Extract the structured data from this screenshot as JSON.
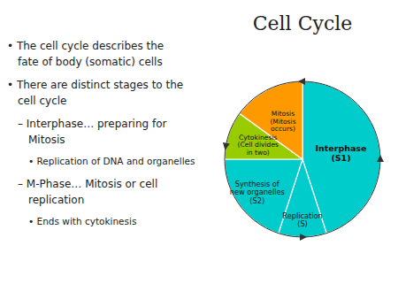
{
  "chart_data": {
    "type": "pie",
    "title": "Cell Cycle",
    "categories": [
      "Interphase\n(S1)",
      "Replication\n(S)",
      "Synthesis of\nnew organelles\n(S2)",
      "Cytokinesis\n(Cell divides\nin two)",
      "Mitosis\n(Mitosis\noccurs)"
    ],
    "values": [
      45,
      10,
      20,
      10,
      15
    ],
    "colors": [
      "#00CCCC",
      "#00CCCC",
      "#00CCCC",
      "#99CC00",
      "#FF9900"
    ],
    "annotations": [
      "• The cell cycle describes the",
      "fate of body (somatic) cells",
      "• There are distinct stages to the",
      "cell cycle",
      "– Interphase… preparing for",
      "Mitosis",
      "• Replication of DNA and organelles",
      "– M-Phase… Mitosis or cell",
      "replication",
      "• Ends with cytokinesis"
    ]
  }
}
